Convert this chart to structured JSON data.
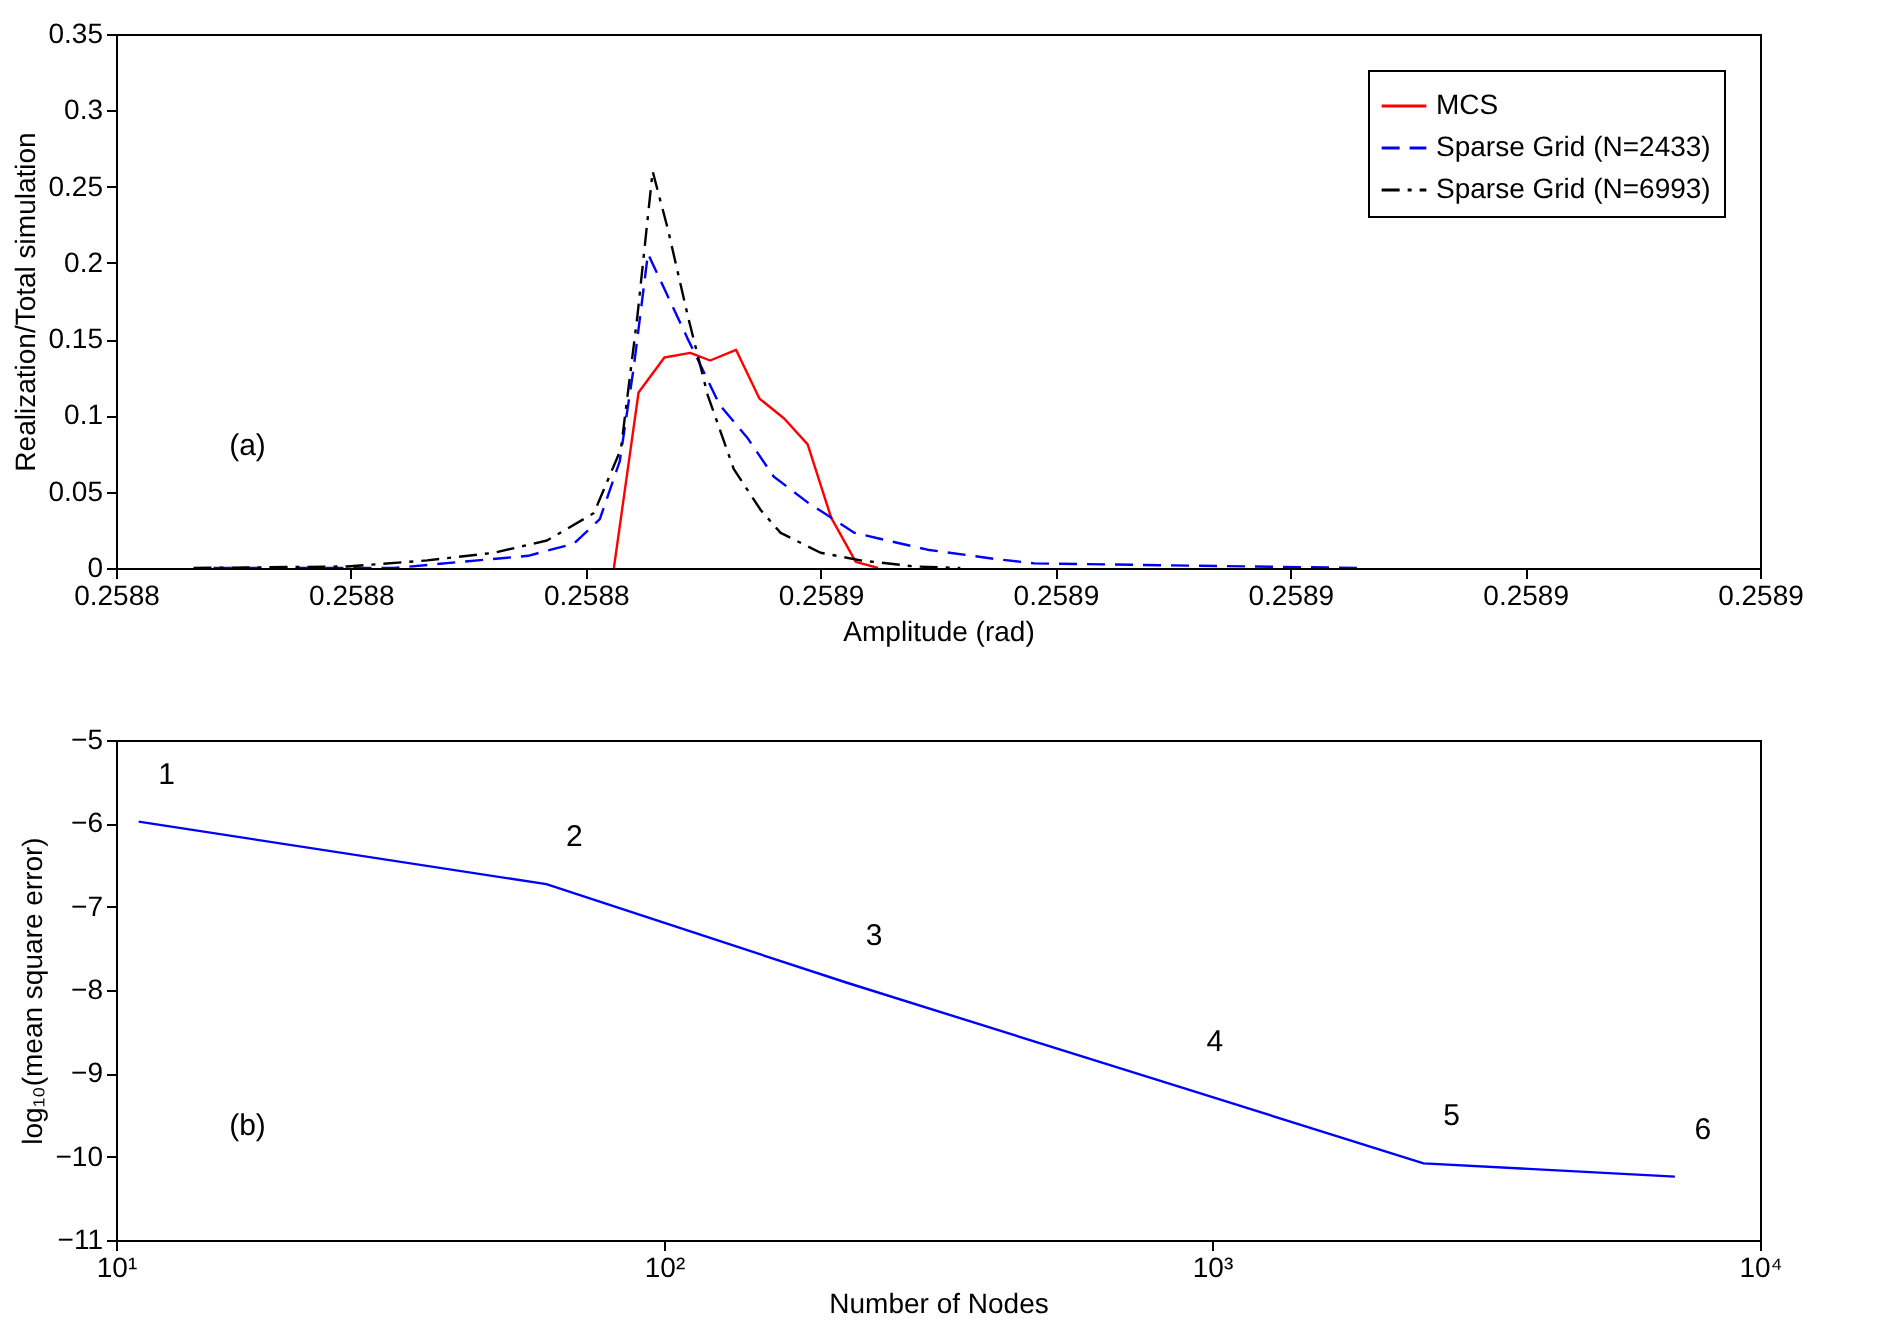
{
  "chart_data": [
    {
      "type": "line",
      "xlabel": "Amplitude (rad)",
      "ylabel": "Realization/Total simulation",
      "legend": "top right",
      "annotations": [
        "(a)"
      ],
      "xlim": [
        0.2588,
        0.25894
      ],
      "xticks": [
        {
          "value": 0.2588,
          "label": "0.2588"
        },
        {
          "value": 0.25882,
          "label": "0.2588"
        },
        {
          "value": 0.25884,
          "label": "0.2588"
        },
        {
          "value": 0.25886,
          "label": "0.2589"
        },
        {
          "value": 0.25888,
          "label": "0.2589"
        },
        {
          "value": 0.2589,
          "label": "0.2589"
        },
        {
          "value": 0.25892,
          "label": "0.2589"
        },
        {
          "value": 0.25894,
          "label": "0.2589"
        }
      ],
      "ylim": [
        0,
        0.35
      ],
      "yticks": [
        0,
        0.05,
        0.1,
        0.15,
        0.2,
        0.25,
        0.3,
        0.35
      ],
      "series": [
        {
          "name": "MCS",
          "color": "#ff0000",
          "line_style": "solid",
          "x": [
            0.2588424,
            0.2588445,
            0.2588467,
            0.2588489,
            0.2588506,
            0.2588528,
            0.2588548,
            0.2588569,
            0.2588589,
            0.2588609,
            0.258863,
            0.2588649
          ],
          "values": [
            0,
            0.115,
            0.138,
            0.141,
            0.136,
            0.143,
            0.111,
            0.098,
            0.081,
            0.033,
            0.004,
            0
          ]
        },
        {
          "name": "Sparse Grid (N=2433)",
          "color": "#0000ff",
          "line_style": "dashed",
          "x": [
            0.2588083,
            0.2588237,
            0.2588293,
            0.2588351,
            0.258839,
            0.2588412,
            0.2588429,
            0.2588441,
            0.2588453,
            0.2588487,
            0.2588514,
            0.2588538,
            0.258856,
            0.2588589,
            0.2588629,
            0.2588691,
            0.2588748,
            0.2588782,
            0.258906
          ],
          "values": [
            0,
            0,
            0.004,
            0.008,
            0.016,
            0.032,
            0.07,
            0.132,
            0.206,
            0.15,
            0.107,
            0.085,
            0.06,
            0.043,
            0.023,
            0.012,
            0.006,
            0.003,
            0
          ]
        },
        {
          "name": "Sparse Grid (N=6993)",
          "color": "#000000",
          "line_style": "dashdot",
          "x": [
            0.2588066,
            0.2588197,
            0.2588265,
            0.2588322,
            0.2588367,
            0.2588407,
            0.258843,
            0.2588444,
            0.2588457,
            0.258847,
            0.2588487,
            0.2588504,
            0.2588526,
            0.2588549,
            0.2588566,
            0.25886,
            0.2588634,
            0.258868,
            0.2588719
          ],
          "values": [
            0,
            0.001,
            0.005,
            0.01,
            0.018,
            0.036,
            0.078,
            0.165,
            0.26,
            0.222,
            0.165,
            0.113,
            0.065,
            0.038,
            0.023,
            0.01,
            0.005,
            0.001,
            0
          ]
        }
      ]
    },
    {
      "type": "line",
      "xlabel": "Number of Nodes",
      "ylabel": "log₁₀(mean square error)",
      "log": "x",
      "annotations": [
        {
          "text": "1",
          "x": 11,
          "y": -5.98
        },
        {
          "text": "2",
          "x": 61,
          "y": -6.73
        },
        {
          "text": "3",
          "x": 215,
          "y": -7.91
        },
        {
          "text": "4",
          "x": 900,
          "y": -9.19
        },
        {
          "text": "5",
          "x": 2433,
          "y": -10.08
        },
        {
          "text": "6",
          "x": 6993,
          "y": -10.24
        },
        "(b)"
      ],
      "xlim": [
        10,
        10000
      ],
      "xticks": [
        {
          "value": 10,
          "label": "10¹"
        },
        {
          "value": 100,
          "label": "10²"
        },
        {
          "value": 1000,
          "label": "10³"
        },
        {
          "value": 10000,
          "label": "10⁴"
        }
      ],
      "ylim": [
        -11,
        -5
      ],
      "yticks": [
        -11,
        -10,
        -9,
        -8,
        -7,
        -6,
        -5
      ],
      "series": [
        {
          "color": "#0000ff",
          "line_style": "solid",
          "x": [
            11,
            61,
            215,
            900,
            2433,
            6993
          ],
          "values": [
            -5.98,
            -6.73,
            -7.91,
            -9.19,
            -10.08,
            -10.24
          ]
        }
      ]
    }
  ]
}
